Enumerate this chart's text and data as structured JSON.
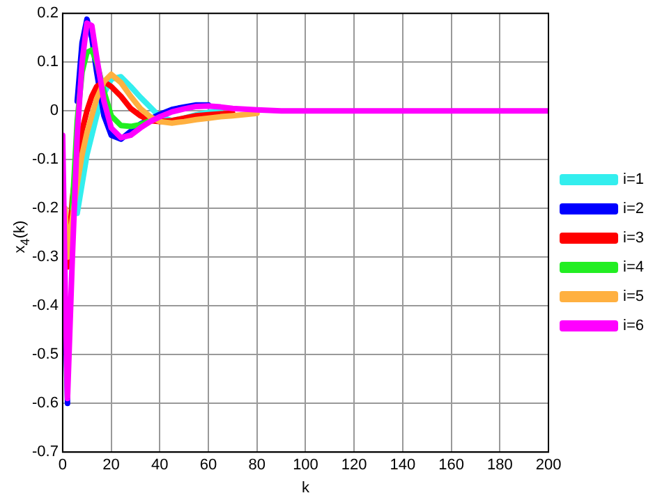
{
  "chart_data": {
    "type": "line",
    "xlabel": "k",
    "ylabel": "x$_{4}$(k)",
    "x": [
      0,
      1,
      2,
      4,
      6,
      8,
      10,
      12,
      14,
      17,
      20,
      24,
      28,
      32,
      36,
      40,
      45,
      50,
      55,
      60,
      65,
      70,
      80,
      90,
      100,
      120,
      150,
      200
    ],
    "xlim": [
      0,
      200
    ],
    "xticks": [
      0,
      20,
      40,
      60,
      80,
      100,
      120,
      140,
      160,
      180,
      200
    ],
    "ylim": [
      -0.7,
      0.2
    ],
    "yticks": [
      -0.7,
      -0.6,
      -0.5,
      -0.4,
      -0.3,
      -0.2,
      -0.1,
      0,
      0.1,
      0.2
    ],
    "grid": true,
    "legend": "right",
    "line_style": "solid",
    "marker": "none",
    "series": [
      {
        "name": "i=1",
        "color": "#33eeee",
        "values": [
          null,
          null,
          null,
          null,
          -0.21,
          -0.15,
          -0.09,
          -0.05,
          -0.01,
          0.035,
          0.065,
          0.07,
          0.05,
          0.028,
          0.008,
          -0.012,
          -0.02,
          -0.015,
          -0.008,
          -0.003,
          0,
          null,
          null,
          null,
          null,
          null,
          null,
          null
        ]
      },
      {
        "name": "i=2",
        "color": "#0000ff",
        "values": [
          null,
          -0.4,
          -0.6,
          null,
          0.02,
          0.14,
          0.188,
          0.15,
          0.08,
          -0.01,
          -0.05,
          -0.058,
          -0.042,
          -0.027,
          -0.017,
          -0.007,
          0.003,
          0.008,
          0.012,
          0.012,
          null,
          null,
          null,
          null,
          null,
          null,
          null,
          null
        ]
      },
      {
        "name": "i=3",
        "color": "#ff0000",
        "values": [
          null,
          -0.25,
          -0.32,
          -0.18,
          -0.1,
          -0.04,
          0,
          0.03,
          0.05,
          0.06,
          0.05,
          0.03,
          0.005,
          -0.01,
          -0.02,
          -0.022,
          -0.02,
          -0.015,
          -0.01,
          -0.008,
          -0.006,
          -0.005,
          null,
          null,
          null,
          null,
          null,
          null
        ]
      },
      {
        "name": "i=4",
        "color": "#22ee22",
        "values": [
          null,
          null,
          null,
          -0.2,
          -0.02,
          0.08,
          0.12,
          0.125,
          0.1,
          0.04,
          -0.01,
          -0.03,
          -0.032,
          -0.028,
          -0.02,
          null,
          null,
          null,
          null,
          null,
          null,
          null,
          null,
          null,
          null,
          null,
          null,
          null
        ]
      },
      {
        "name": "i=5",
        "color": "#ffb040",
        "values": [
          null,
          -0.2,
          -0.3,
          -0.22,
          -0.15,
          -0.09,
          -0.045,
          -0.01,
          0.025,
          0.06,
          0.075,
          0.058,
          0.03,
          0.005,
          -0.012,
          -0.022,
          -0.025,
          -0.022,
          -0.018,
          -0.015,
          -0.012,
          -0.01,
          -0.005,
          null,
          null,
          null,
          null,
          null
        ]
      },
      {
        "name": "i=6",
        "color": "#ff00ff",
        "values": [
          -0.05,
          -0.35,
          -0.59,
          -0.3,
          -0.05,
          0.1,
          0.18,
          0.175,
          0.11,
          0.02,
          -0.035,
          -0.055,
          -0.05,
          -0.035,
          -0.022,
          -0.012,
          -0.002,
          0.004,
          0.009,
          0.01,
          0.008,
          0.005,
          0.002,
          0,
          0,
          0,
          0,
          0
        ]
      }
    ]
  }
}
